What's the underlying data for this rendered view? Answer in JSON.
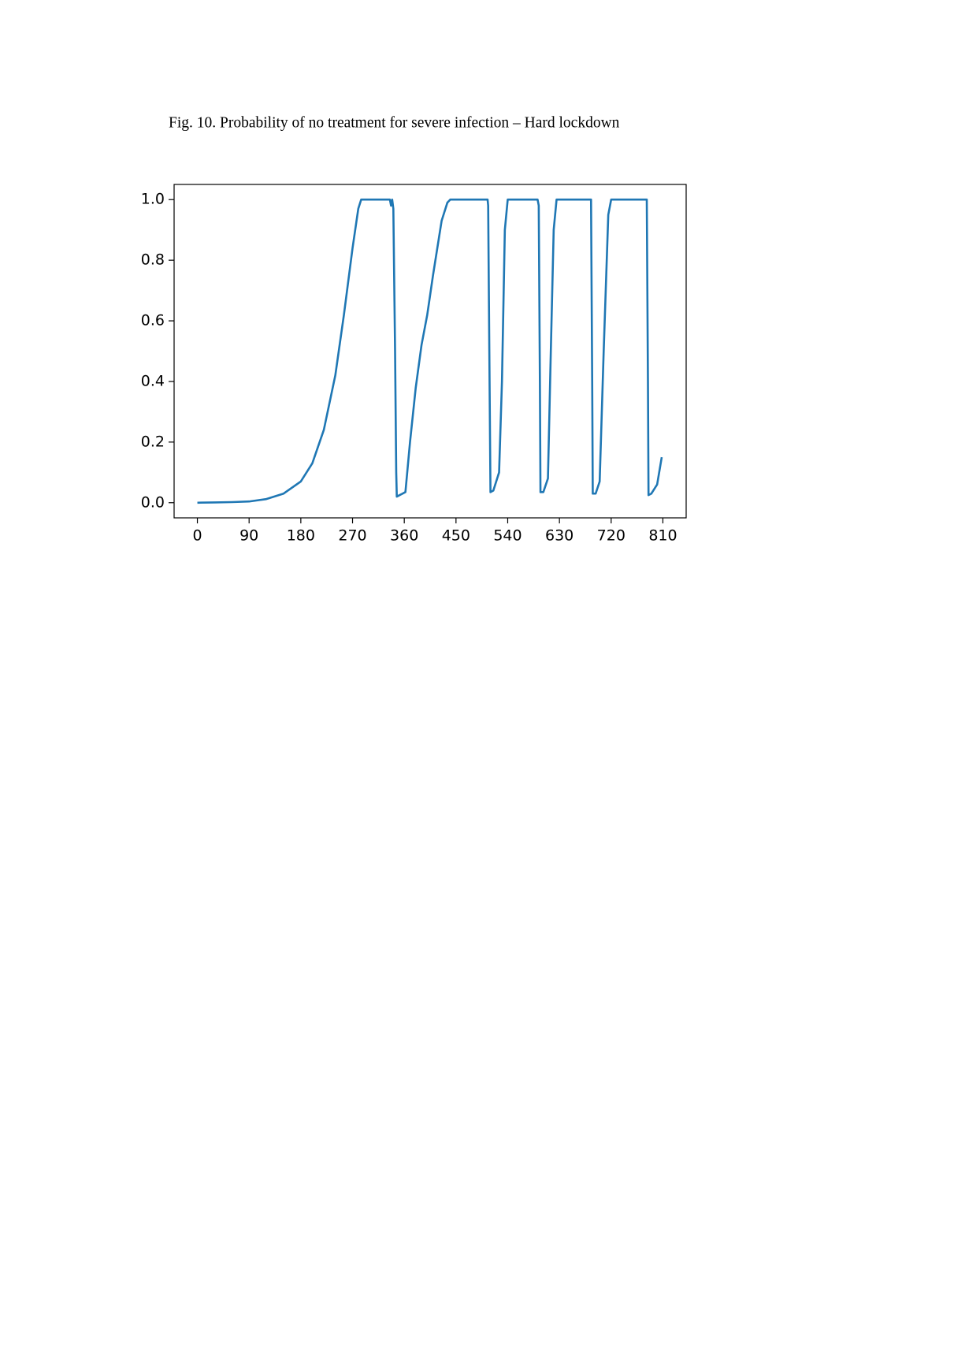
{
  "chart_data": {
    "type": "line",
    "title": "Fig. 10. Probability of no treatment for severe infection – Hard lockdown",
    "series": [
      {
        "color": "#1f77b4",
        "x": [
          0,
          30,
          60,
          90,
          120,
          150,
          180,
          200,
          220,
          240,
          255,
          270,
          280,
          285,
          335,
          337,
          339,
          341,
          344,
          346,
          347,
          362,
          370,
          380,
          390,
          400,
          410,
          425,
          435,
          440,
          505,
          506,
          508,
          510,
          515,
          525,
          530,
          535,
          540,
          592,
          594,
          596,
          597,
          602,
          610,
          615,
          620,
          625,
          685,
          687,
          688,
          693,
          700,
          707,
          715,
          720,
          782,
          784,
          785,
          790,
          800,
          808
        ],
        "values": [
          0,
          0.001,
          0.002,
          0.004,
          0.012,
          0.03,
          0.07,
          0.13,
          0.24,
          0.42,
          0.62,
          0.84,
          0.97,
          1.0,
          1.0,
          0.98,
          1.0,
          0.97,
          0.5,
          0.1,
          0.02,
          0.035,
          0.2,
          0.38,
          0.52,
          0.62,
          0.75,
          0.93,
          0.99,
          1.0,
          1.0,
          0.98,
          0.5,
          0.035,
          0.04,
          0.1,
          0.4,
          0.9,
          1.0,
          1.0,
          0.98,
          0.4,
          0.035,
          0.035,
          0.08,
          0.5,
          0.9,
          1.0,
          1.0,
          0.4,
          0.03,
          0.03,
          0.07,
          0.5,
          0.95,
          1.0,
          1.0,
          0.4,
          0.025,
          0.03,
          0.06,
          0.15
        ]
      }
    ],
    "xlim": [
      -40.5,
      850.5
    ],
    "ylim": [
      -0.05,
      1.05
    ],
    "xticks": [
      0,
      90,
      180,
      270,
      360,
      450,
      540,
      630,
      720,
      810
    ],
    "yticks": [
      {
        "value": 0,
        "label": "0.0"
      },
      {
        "value": 0.2,
        "label": "0.2"
      },
      {
        "value": 0.4,
        "label": "0.4"
      },
      {
        "value": 0.6,
        "label": "0.6"
      },
      {
        "value": 0.8,
        "label": "0.8"
      },
      {
        "value": 1.0,
        "label": "1.0"
      }
    ]
  }
}
